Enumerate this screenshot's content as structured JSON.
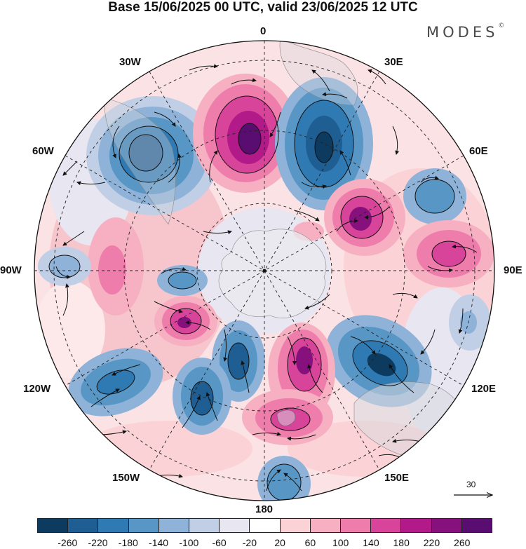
{
  "title": "Base 15/06/2025 00 UTC, valid 23/06/2025 12 UTC",
  "brand": {
    "name": "MODES",
    "mark": "©"
  },
  "longitude_labels": [
    "0",
    "30E",
    "60E",
    "90E",
    "120E",
    "150E",
    "180",
    "150W",
    "120W",
    "90W",
    "60W",
    "30W"
  ],
  "projection": "polar stereographic (south pole)",
  "vector_reference": {
    "value": "30"
  },
  "colorbar": {
    "ticks": [
      "-260",
      "-220",
      "-180",
      "-140",
      "-100",
      "-60",
      "-20",
      "20",
      "60",
      "100",
      "140",
      "180",
      "220",
      "260"
    ],
    "colors": [
      "#0d3a5f",
      "#1f5e92",
      "#2f7ab3",
      "#5896c6",
      "#8eb2d8",
      "#c1cfe6",
      "#e7e6f1",
      "#ffffff",
      "#fbd3d6",
      "#f6b0c2",
      "#ef7dac",
      "#d8449a",
      "#b11a88",
      "#86117c",
      "#5a0d70"
    ]
  }
}
